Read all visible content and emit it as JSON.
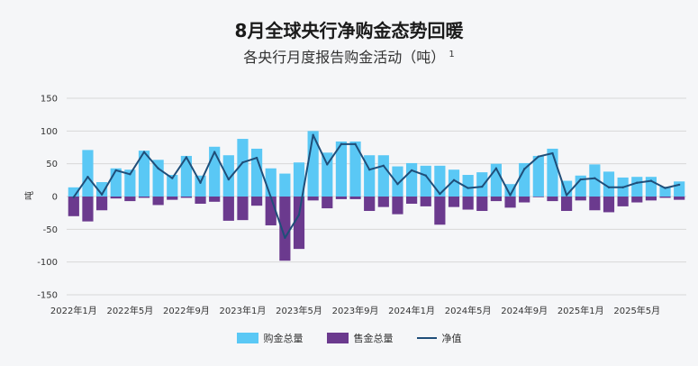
{
  "title": "8月全球央行净购金态势回暖",
  "subtitle": "各央行月度报告购金活动（吨）",
  "footnote_marker": "1",
  "colors": {
    "purchases": "#5ac8f5",
    "sales": "#6b3a8e",
    "net": "#1f4e79",
    "grid": "#d8d8d8"
  },
  "chart_data": {
    "type": "bar",
    "ylabel": "吨",
    "ylim": [
      -150,
      150
    ],
    "yticks": [
      150,
      100,
      50,
      0,
      -50,
      -100,
      -150
    ],
    "categories": [
      "2022年1月",
      "2022年2月",
      "2022年3月",
      "2022年4月",
      "2022年5月",
      "2022年6月",
      "2022年7月",
      "2022年8月",
      "2022年9月",
      "2022年10月",
      "2022年11月",
      "2022年12月",
      "2023年1月",
      "2023年2月",
      "2023年3月",
      "2023年4月",
      "2023年5月",
      "2023年6月",
      "2023年7月",
      "2023年8月",
      "2023年9月",
      "2023年10月",
      "2023年11月",
      "2023年12月",
      "2024年1月",
      "2024年2月",
      "2024年3月",
      "2024年4月",
      "2024年5月",
      "2024年6月",
      "2024年7月",
      "2024年8月",
      "2024年9月",
      "2024年10月",
      "2024年11月",
      "2024年12月",
      "2025年1月",
      "2025年2月",
      "2025年3月",
      "2025年4月",
      "2025年5月",
      "2025年6月",
      "2025年7月",
      "2025年8月"
    ],
    "xtick_labels": [
      "2022年1月",
      "2022年5月",
      "2022年9月",
      "2023年1月",
      "2023年5月",
      "2023年9月",
      "2024年1月",
      "2024年5月",
      "2024年9月",
      "2025年1月",
      "2025年5月"
    ],
    "series": [
      {
        "name": "购金总量",
        "kind": "bar",
        "values": [
          14,
          71,
          22,
          43,
          41,
          70,
          56,
          33,
          62,
          32,
          76,
          63,
          88,
          73,
          43,
          35,
          52,
          100,
          67,
          84,
          84,
          63,
          63,
          46,
          51,
          47,
          47,
          41,
          33,
          37,
          50,
          19,
          51,
          62,
          73,
          24,
          32,
          49,
          38,
          29,
          30,
          30,
          15,
          23
        ]
      },
      {
        "name": "售金总量",
        "kind": "bar",
        "values": [
          -30,
          -38,
          -21,
          -3,
          -7,
          -2,
          -13,
          -5,
          -2,
          -11,
          -8,
          -37,
          -36,
          -14,
          -44,
          -98,
          -80,
          -6,
          -18,
          -4,
          -4,
          -22,
          -16,
          -27,
          -11,
          -15,
          -43,
          -16,
          -20,
          -22,
          -7,
          -17,
          -9,
          -1,
          -7,
          -22,
          -6,
          -21,
          -24,
          -15,
          -9,
          -6,
          -2,
          -5
        ]
      },
      {
        "name": "净值",
        "kind": "line",
        "values": [
          -1,
          30,
          3,
          40,
          34,
          68,
          43,
          28,
          60,
          21,
          68,
          26,
          52,
          59,
          -1,
          -63,
          -28,
          94,
          49,
          80,
          80,
          41,
          47,
          19,
          40,
          32,
          4,
          25,
          13,
          15,
          43,
          2,
          42,
          61,
          66,
          2,
          26,
          28,
          14,
          14,
          21,
          24,
          13,
          18
        ]
      }
    ]
  }
}
